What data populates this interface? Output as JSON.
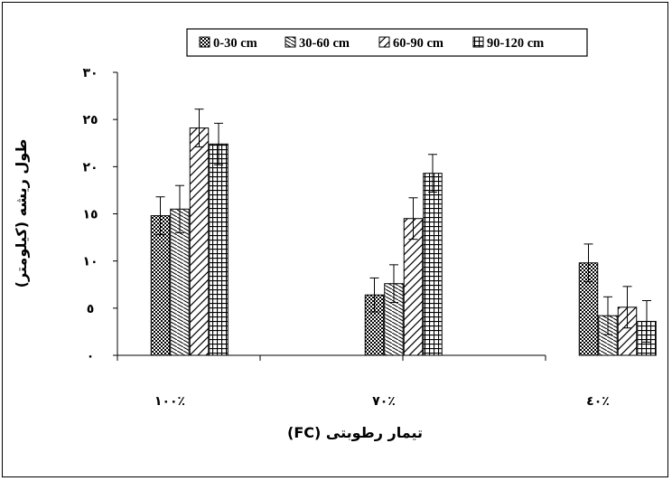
{
  "chart_data": {
    "type": "bar",
    "title": "",
    "xlabel": "تیمار رطوبتی (FC)",
    "ylabel": "طول ریشه (کیلومتر)",
    "ylim": [
      0,
      30
    ],
    "yticks": [
      0,
      5,
      10,
      15,
      20,
      25,
      30
    ],
    "ytick_labels": [
      "٠",
      "٥",
      "١٠",
      "١٥",
      "٢٠",
      "٢٥",
      "٣٠"
    ],
    "categories": [
      "١٠٠٪",
      "٧٠٪",
      "٤٠٪"
    ],
    "series": [
      {
        "name": "0-30 cm",
        "values": [
          14.8,
          6.4,
          9.8
        ],
        "errors": [
          2.0,
          1.8,
          2.0
        ]
      },
      {
        "name": "30-60 cm",
        "values": [
          15.5,
          7.6,
          4.2
        ],
        "errors": [
          2.5,
          2.0,
          2.0
        ]
      },
      {
        "name": "60-90 cm",
        "values": [
          24.1,
          14.5,
          5.1
        ],
        "errors": [
          2.0,
          2.2,
          2.2
        ]
      },
      {
        "name": "90-120 cm",
        "values": [
          22.4,
          19.3,
          3.6
        ],
        "errors": [
          2.2,
          2.0,
          2.2
        ]
      }
    ],
    "legend_position": "top",
    "grid": false,
    "colors": {
      "axis": "#000000",
      "bar_fill": "#ffffff",
      "pattern": "#000000"
    },
    "patterns": [
      "checker",
      "diagonal-fine",
      "diagonal-wide",
      "grid"
    ]
  }
}
